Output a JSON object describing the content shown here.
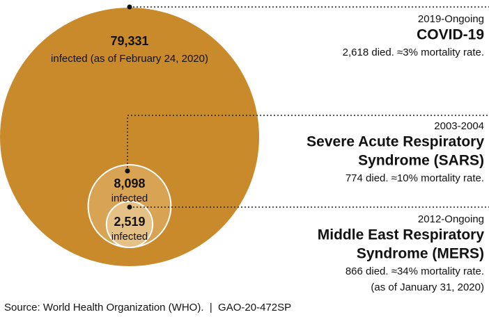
{
  "chart_data": {
    "type": "bubble",
    "categories": [
      "COVID-19",
      "SARS",
      "MERS"
    ],
    "values": [
      79331,
      8098,
      2519
    ],
    "value_labels": [
      "79,331",
      "8,098",
      "2,519"
    ],
    "value_notes": [
      "infected (as of February 24, 2020)",
      "infected",
      "infected"
    ],
    "colors": [
      "#c98a2c",
      "#d9a354",
      "#e6c185"
    ],
    "periods": [
      "2019-Ongoing",
      "2003-2004",
      "2012-Ongoing"
    ],
    "name_lines": [
      [
        "COVID-19"
      ],
      [
        "Severe Acute Respiratory",
        "Syndrome (SARS)"
      ],
      [
        "Middle East Respiratory",
        "Syndrome (MERS)"
      ]
    ],
    "notes": [
      [
        "2,618 died. ≈3% mortality rate."
      ],
      [
        "774 died. ≈10% mortality rate."
      ],
      [
        "866 died. ≈34% mortality rate.",
        "(as of January 31, 2020)"
      ]
    ],
    "source": "Source: World Health Organization (WHO).  |  GAO-20-472SP"
  }
}
